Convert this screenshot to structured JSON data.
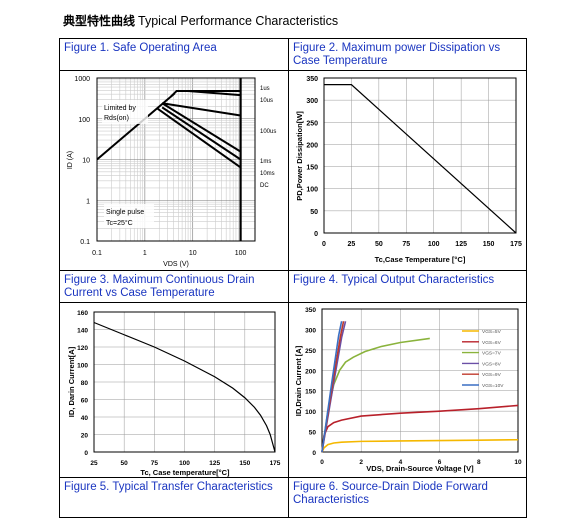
{
  "header": {
    "cn_title": "典型特性曲线",
    "title": "Typical Performance Characteristics"
  },
  "captions": {
    "fig1": "Figure 1. Safe Operating Area",
    "fig2": "Figure 2. Maximum power Dissipation vs Case Temperature",
    "fig3": "Figure 3. Maximum Continuous Drain Current vs Case Temperature",
    "fig4": "Figure 4. Typical Output Characteristics",
    "fig5": "Figure 5. Typical Transfer Characteristics",
    "fig6": "Figure 6. Source-Drain Diode Forward Characteristics"
  },
  "chart_data": [
    {
      "id": "soa",
      "type": "line",
      "xscale": "log",
      "yscale": "log",
      "xlabel": "VDS (V)",
      "ylabel": "ID (A)",
      "xlim": [
        0.1,
        200
      ],
      "ylim": [
        0.1,
        1000
      ],
      "xticks": [
        0.1,
        1,
        10,
        100
      ],
      "yticks": [
        0.1,
        1,
        10,
        100,
        1000
      ],
      "annotations": [
        "Limited by Rds(on)",
        "Single pulse Tc=25°C"
      ],
      "series": [
        {
          "name": "Rds(on) limit",
          "x": [
            0.1,
            4.2
          ],
          "y": [
            10,
            420
          ]
        },
        {
          "name": "1us",
          "x": [
            3.5,
            4.6,
            25,
            100
          ],
          "y": [
            350,
            480,
            480,
            480
          ]
        },
        {
          "name": "10us",
          "x": [
            4.6,
            8,
            100
          ],
          "y": [
            480,
            480,
            380
          ]
        },
        {
          "name": "100us",
          "x": [
            2.3,
            100
          ],
          "y": [
            240,
            120
          ]
        },
        {
          "name": "1ms",
          "x": [
            2.3,
            100
          ],
          "y": [
            240,
            15.6
          ]
        },
        {
          "name": "10ms",
          "x": [
            2.3,
            100
          ],
          "y": [
            190,
            10
          ]
        },
        {
          "name": "DC",
          "x": [
            1.8,
            100
          ],
          "y": [
            180,
            6.4
          ]
        }
      ],
      "series_labels": [
        "1us",
        "10us",
        "100us",
        "1ms",
        "10ms",
        "DC"
      ]
    },
    {
      "id": "power",
      "type": "line",
      "xlabel": "Tc,Case Temperature [°C]",
      "ylabel": "PD,Power Dissipation[W]",
      "xlim": [
        0,
        175
      ],
      "ylim": [
        0,
        350
      ],
      "xticks": [
        0,
        25,
        50,
        75,
        100,
        125,
        150,
        175
      ],
      "yticks": [
        0,
        50,
        100,
        150,
        200,
        250,
        300,
        350
      ],
      "series": [
        {
          "x": [
            0,
            25,
            175
          ],
          "y": [
            335,
            335,
            0
          ]
        }
      ]
    },
    {
      "id": "current",
      "type": "line",
      "xlabel": "Tc, Case temperature[°C]",
      "ylabel": "ID, Darin Current[A]",
      "xlim": [
        25,
        175
      ],
      "ylim": [
        0,
        160
      ],
      "xticks": [
        25,
        50,
        75,
        100,
        125,
        150,
        175
      ],
      "yticks": [
        0,
        20,
        40,
        60,
        80,
        100,
        120,
        140,
        160
      ],
      "series": [
        {
          "x": [
            25,
            50,
            75,
            100,
            125,
            140,
            150,
            158,
            163,
            168,
            171,
            173,
            175
          ],
          "y": [
            148,
            134,
            120,
            104,
            86,
            73,
            62,
            51,
            42,
            30,
            20,
            10,
            0
          ]
        }
      ]
    },
    {
      "id": "output",
      "type": "line",
      "xlabel": "VDS, Drain-Source Voltage [V]",
      "ylabel": "ID,Drain Current [A]",
      "xlim": [
        0,
        10
      ],
      "ylim": [
        0,
        350
      ],
      "xticks": [
        0,
        2,
        4,
        6,
        8,
        10
      ],
      "yticks": [
        0,
        50,
        100,
        150,
        200,
        250,
        300,
        350
      ],
      "legend_position": "right",
      "series": [
        {
          "name": "VGS=5V",
          "color": "#f5b800",
          "x": [
            0,
            0.1,
            0.3,
            0.6,
            1,
            2,
            4,
            6,
            8,
            10
          ],
          "y": [
            0,
            10,
            18,
            22,
            24,
            26,
            27,
            28,
            29,
            30
          ]
        },
        {
          "name": "VGS=6V",
          "color": "#b8202a",
          "x": [
            0,
            0.1,
            0.3,
            0.6,
            1,
            2,
            4,
            6,
            8,
            10
          ],
          "y": [
            0,
            40,
            62,
            72,
            78,
            88,
            95,
            100,
            106,
            114
          ]
        },
        {
          "name": "VGS=7V",
          "color": "#8ab33c",
          "x": [
            0,
            0.3,
            0.6,
            0.9,
            1.2,
            1.6,
            2.2,
            3,
            4,
            5.5
          ],
          "y": [
            0,
            100,
            165,
            200,
            220,
            232,
            246,
            258,
            268,
            278
          ]
        },
        {
          "name": "VGS=8V",
          "color": "#6a4fa6",
          "x": [
            0,
            0.6,
            1.0,
            1.2
          ],
          "y": [
            0,
            170,
            280,
            320
          ]
        },
        {
          "name": "VGS=9V",
          "color": "#c0392b",
          "x": [
            0,
            0.55,
            0.95,
            1.1
          ],
          "y": [
            0,
            170,
            285,
            320
          ]
        },
        {
          "name": "VGS=10V",
          "color": "#3a6fc4",
          "x": [
            0,
            0.5,
            0.85,
            1.0
          ],
          "y": [
            0,
            170,
            285,
            320
          ]
        }
      ]
    }
  ]
}
